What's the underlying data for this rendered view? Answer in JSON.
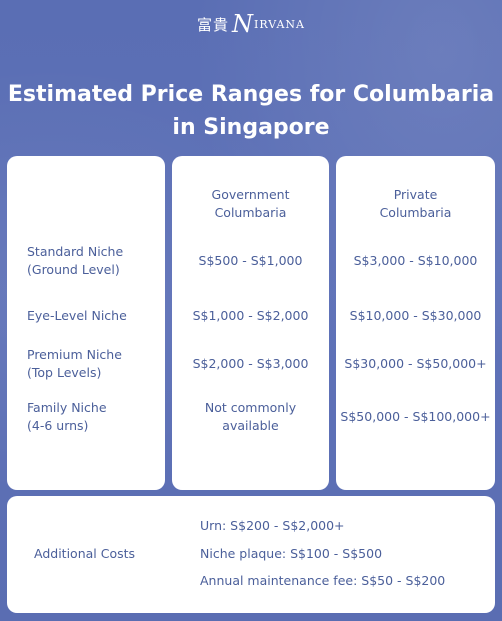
{
  "brand": {
    "chinese": "富貴",
    "name_initial": "N",
    "name_rest": "IRVANA"
  },
  "title": {
    "line1": "Estimated Price Ranges for Columbaria",
    "line2": "in Singapore"
  },
  "headers": {
    "government": [
      "Government",
      "Columbaria"
    ],
    "private": [
      "Private",
      "Columbaria"
    ]
  },
  "rows": [
    {
      "label": [
        "Standard Niche",
        "(Ground Level)"
      ],
      "government": "S$500 - S$1,000",
      "private": "S$3,000 - S$10,000"
    },
    {
      "label": [
        "Eye-Level Niche"
      ],
      "government": "S$1,000 - S$2,000",
      "private": "S$10,000 - S$30,000"
    },
    {
      "label": [
        "Premium Niche",
        "(Top Levels)"
      ],
      "government": "S$2,000 - S$3,000",
      "private": "S$30,000 - S$50,000+"
    },
    {
      "label": [
        "Family Niche",
        "(4-6 urns)"
      ],
      "government": [
        "Not commonly",
        "available"
      ],
      "private": "S$50,000 - S$100,000+"
    }
  ],
  "additional": {
    "label": "Additional Costs",
    "items": [
      "Urn: S$200 - S$2,000+",
      "Niche plaque: S$100 - S$500",
      "Annual maintenance fee: S$50 - S$200"
    ]
  },
  "colors": {
    "background": "#5b6fb5",
    "card": "#ffffff",
    "text": "#4b5f9a"
  }
}
